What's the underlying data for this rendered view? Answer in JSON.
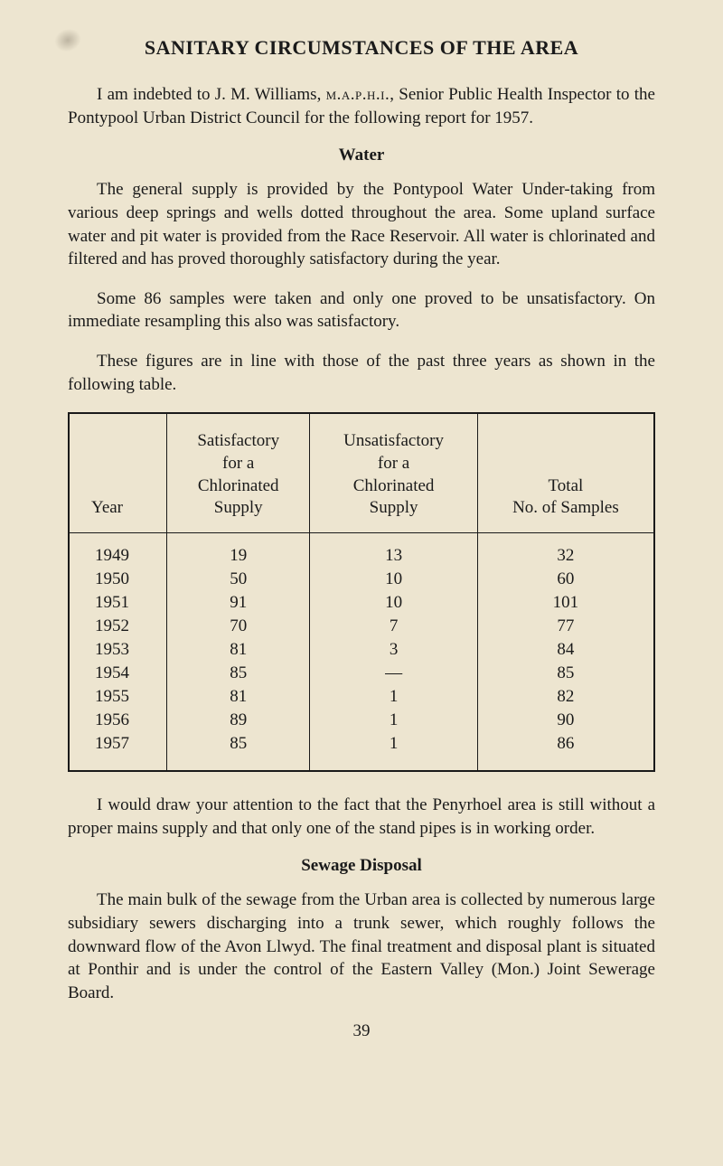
{
  "title": "SANITARY CIRCUMSTANCES OF THE AREA",
  "intro": "I am indebted to J. M. Williams, ",
  "intro_sc": "m.a.p.h.i.",
  "intro_tail": ", Senior Public Health Inspector to the Pontypool Urban District Council for the following report for 1957.",
  "water_heading": "Water",
  "water_p1": "The general supply is provided by the Pontypool Water Under-taking from various deep springs and wells dotted throughout the area. Some upland surface water and pit water is provided from the Race Reservoir. All water is chlorinated and filtered and has proved thoroughly satisfactory during the year.",
  "water_p2": "Some 86 samples were taken and only one proved to be unsatisfactory. On immediate resampling this also was satisfactory.",
  "water_p3": "These figures are in line with those of the past three years as shown in the following table.",
  "table": {
    "headers": {
      "year": "Year",
      "sat": "Satisfactory\nfor a\nChlorinated\nSupply",
      "unsat": "Unsatisfactory\nfor a\nChlorinated\nSupply",
      "total": "Total\nNo. of Samples"
    },
    "rows": [
      {
        "year": "1949",
        "sat": "19",
        "unsat": "13",
        "total": "32"
      },
      {
        "year": "1950",
        "sat": "50",
        "unsat": "10",
        "total": "60"
      },
      {
        "year": "1951",
        "sat": "91",
        "unsat": "10",
        "total": "101"
      },
      {
        "year": "1952",
        "sat": "70",
        "unsat": "7",
        "total": "77"
      },
      {
        "year": "1953",
        "sat": "81",
        "unsat": "3",
        "total": "84"
      },
      {
        "year": "1954",
        "sat": "85",
        "unsat": "—",
        "total": "85"
      },
      {
        "year": "1955",
        "sat": "81",
        "unsat": "1",
        "total": "82"
      },
      {
        "year": "1956",
        "sat": "89",
        "unsat": "1",
        "total": "90"
      },
      {
        "year": "1957",
        "sat": "85",
        "unsat": "1",
        "total": "86"
      }
    ]
  },
  "penyrhoel": "I would draw your attention to the fact that the Penyrhoel area is still without a proper mains supply and that only one of the stand pipes is in working order.",
  "sewage_heading": "Sewage Disposal",
  "sewage_p": "The main bulk of the sewage from the Urban area is collected by numerous large subsidiary sewers discharging into a trunk sewer, which roughly follows the downward flow of the Avon Llwyd. The final treatment and disposal plant is situated at Ponthir and is under the control of the Eastern Valley (Mon.) Joint Sewerage Board.",
  "page_number": "39"
}
